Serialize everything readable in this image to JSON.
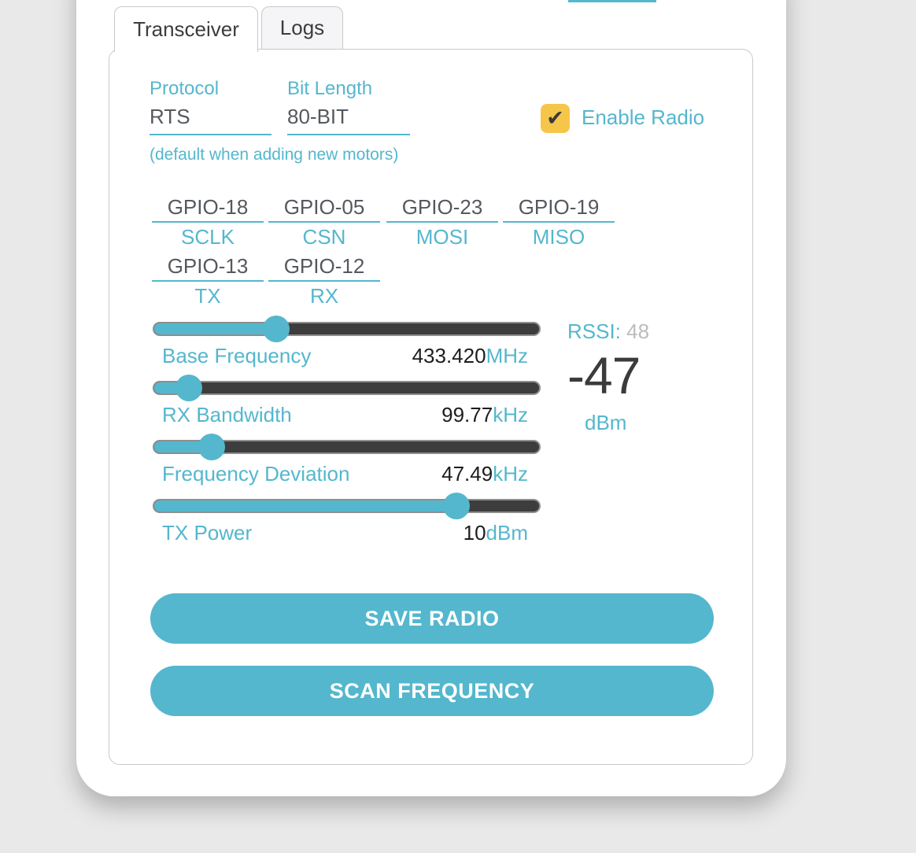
{
  "colors": {
    "teal": "#54b7cd",
    "checkbox_yellow": "#f6c64a",
    "track_dark": "#3d3d3d"
  },
  "top_accent": {
    "note": "cut-off teal underline fragment at top edge"
  },
  "tabs": [
    {
      "label": "Transceiver",
      "active": true
    },
    {
      "label": "Logs",
      "active": false
    }
  ],
  "form": {
    "protocol": {
      "label": "Protocol",
      "value": "RTS"
    },
    "bit_length": {
      "label": "Bit Length",
      "value": "80-BIT"
    },
    "default_note": "(default when adding new motors)",
    "enable_radio": {
      "label": "Enable Radio",
      "checked": true,
      "check_glyph": "✔"
    }
  },
  "gpio_pins": [
    {
      "value": "GPIO-18",
      "label": "SCLK"
    },
    {
      "value": "GPIO-05",
      "label": "CSN"
    },
    {
      "value": "GPIO-23",
      "label": "MOSI"
    },
    {
      "value": "GPIO-19",
      "label": "MISO"
    },
    {
      "value": "GPIO-13",
      "label": "TX"
    },
    {
      "value": "GPIO-12",
      "label": "RX"
    }
  ],
  "sliders": [
    {
      "label": "Base Frequency",
      "value": "433.420",
      "unit": "MHz",
      "percent": 31.6
    },
    {
      "label": "RX Bandwidth",
      "value": "99.77",
      "unit": "kHz",
      "percent": 8.9
    },
    {
      "label": "Frequency Deviation",
      "value": "47.49",
      "unit": "kHz",
      "percent": 15.0
    },
    {
      "label": "TX Power",
      "value": "10",
      "unit": "dBm",
      "percent": 78.5
    }
  ],
  "rssi": {
    "label": "RSSI:",
    "raw": "48",
    "value": "-47",
    "unit": "dBm"
  },
  "buttons": {
    "save": "SAVE RADIO",
    "scan": "SCAN FREQUENCY"
  }
}
